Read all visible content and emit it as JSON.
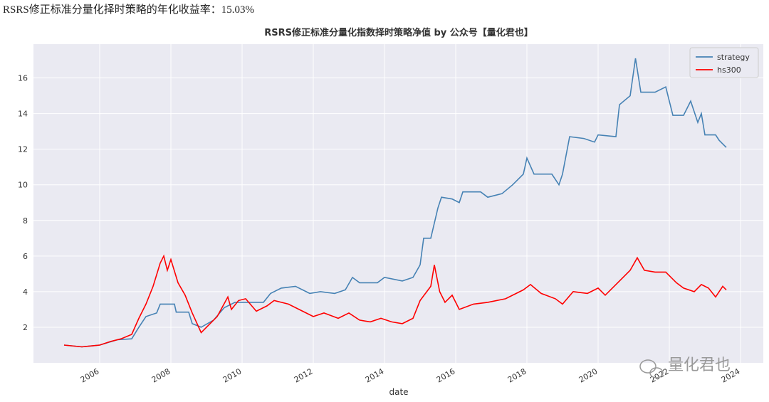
{
  "header": {
    "text": "RSRS修正标准分量化择时策略的年化收益率：15.03%"
  },
  "chart_data": {
    "type": "line",
    "title": "RSRS修正标准分量化指数择时策略净值  by 公众号【量化君也】",
    "x_label": "date",
    "xlim": [
      2004.14,
      2024.64
    ],
    "xticks": [
      2006,
      2008,
      2010,
      2012,
      2014,
      2016,
      2018,
      2020,
      2022,
      2024
    ],
    "ylim": [
      0,
      17.9
    ],
    "yticks": [
      2,
      4,
      6,
      8,
      10,
      12,
      14,
      16
    ],
    "grid": true,
    "legend": "upper right",
    "watermark": "量化君也",
    "series": [
      {
        "name": "strategy",
        "color": "#4682b4",
        "x": [
          2005.0,
          2005.5,
          2006.0,
          2006.5,
          2006.9,
          2007.1,
          2007.3,
          2007.6,
          2007.7,
          2008.1,
          2008.15,
          2008.5,
          2008.6,
          2008.85,
          2009.2,
          2009.5,
          2009.8,
          2010.6,
          2010.8,
          2011.1,
          2011.5,
          2011.9,
          2012.2,
          2012.6,
          2012.9,
          2013.1,
          2013.3,
          2013.8,
          2014.0,
          2014.5,
          2014.8,
          2015.0,
          2015.1,
          2015.3,
          2015.5,
          2015.6,
          2015.9,
          2016.1,
          2016.2,
          2016.7,
          2016.9,
          2017.3,
          2017.6,
          2017.9,
          2018.0,
          2018.2,
          2018.7,
          2018.9,
          2019.0,
          2019.2,
          2019.6,
          2019.9,
          2020.0,
          2020.5,
          2020.6,
          2020.9,
          2021.05,
          2021.2,
          2021.6,
          2021.9,
          2022.1,
          2022.4,
          2022.6,
          2022.8,
          2022.9,
          2023.0,
          2023.3,
          2023.4,
          2023.6
        ],
        "values": [
          1.0,
          0.9,
          1.0,
          1.3,
          1.35,
          2.0,
          2.6,
          2.8,
          3.3,
          3.3,
          2.85,
          2.85,
          2.2,
          2.0,
          2.4,
          3.1,
          3.4,
          3.4,
          3.9,
          4.2,
          4.3,
          3.9,
          4.0,
          3.9,
          4.1,
          4.8,
          4.5,
          4.5,
          4.8,
          4.6,
          4.8,
          5.5,
          7.0,
          7.0,
          8.7,
          9.3,
          9.2,
          9.0,
          9.6,
          9.6,
          9.3,
          9.5,
          10.0,
          10.6,
          11.5,
          10.6,
          10.6,
          10.0,
          10.6,
          12.7,
          12.6,
          12.4,
          12.8,
          12.7,
          14.5,
          15.0,
          17.1,
          15.2,
          15.2,
          15.5,
          13.9,
          13.9,
          14.7,
          13.5,
          14.0,
          12.8,
          12.8,
          12.5,
          12.1
        ]
      },
      {
        "name": "hs300",
        "color": "#ff0000",
        "x": [
          2005.0,
          2005.5,
          2006.0,
          2006.3,
          2006.6,
          2006.9,
          2007.1,
          2007.3,
          2007.5,
          2007.7,
          2007.8,
          2007.9,
          2008.0,
          2008.2,
          2008.4,
          2008.6,
          2008.85,
          2009.0,
          2009.3,
          2009.6,
          2009.7,
          2009.9,
          2010.1,
          2010.4,
          2010.7,
          2010.9,
          2011.3,
          2011.7,
          2012.0,
          2012.3,
          2012.7,
          2013.0,
          2013.3,
          2013.6,
          2013.9,
          2014.2,
          2014.5,
          2014.8,
          2015.0,
          2015.3,
          2015.4,
          2015.55,
          2015.7,
          2015.9,
          2016.1,
          2016.5,
          2016.9,
          2017.4,
          2017.9,
          2018.1,
          2018.4,
          2018.8,
          2019.0,
          2019.3,
          2019.7,
          2020.0,
          2020.2,
          2020.6,
          2020.9,
          2021.1,
          2021.3,
          2021.6,
          2021.9,
          2022.2,
          2022.4,
          2022.7,
          2022.9,
          2023.1,
          2023.3,
          2023.5,
          2023.6
        ],
        "values": [
          1.0,
          0.9,
          1.0,
          1.2,
          1.35,
          1.6,
          2.5,
          3.3,
          4.3,
          5.6,
          6.0,
          5.2,
          5.8,
          4.5,
          3.8,
          2.8,
          1.7,
          2.0,
          2.6,
          3.7,
          3.0,
          3.5,
          3.6,
          2.9,
          3.2,
          3.5,
          3.3,
          2.9,
          2.6,
          2.8,
          2.5,
          2.8,
          2.4,
          2.3,
          2.5,
          2.3,
          2.2,
          2.5,
          3.5,
          4.3,
          5.5,
          4.0,
          3.4,
          3.8,
          3.0,
          3.3,
          3.4,
          3.6,
          4.1,
          4.4,
          3.9,
          3.6,
          3.3,
          4.0,
          3.9,
          4.2,
          3.8,
          4.6,
          5.2,
          5.9,
          5.2,
          5.1,
          5.1,
          4.5,
          4.2,
          4.0,
          4.4,
          4.2,
          3.7,
          4.3,
          4.1
        ]
      }
    ]
  }
}
